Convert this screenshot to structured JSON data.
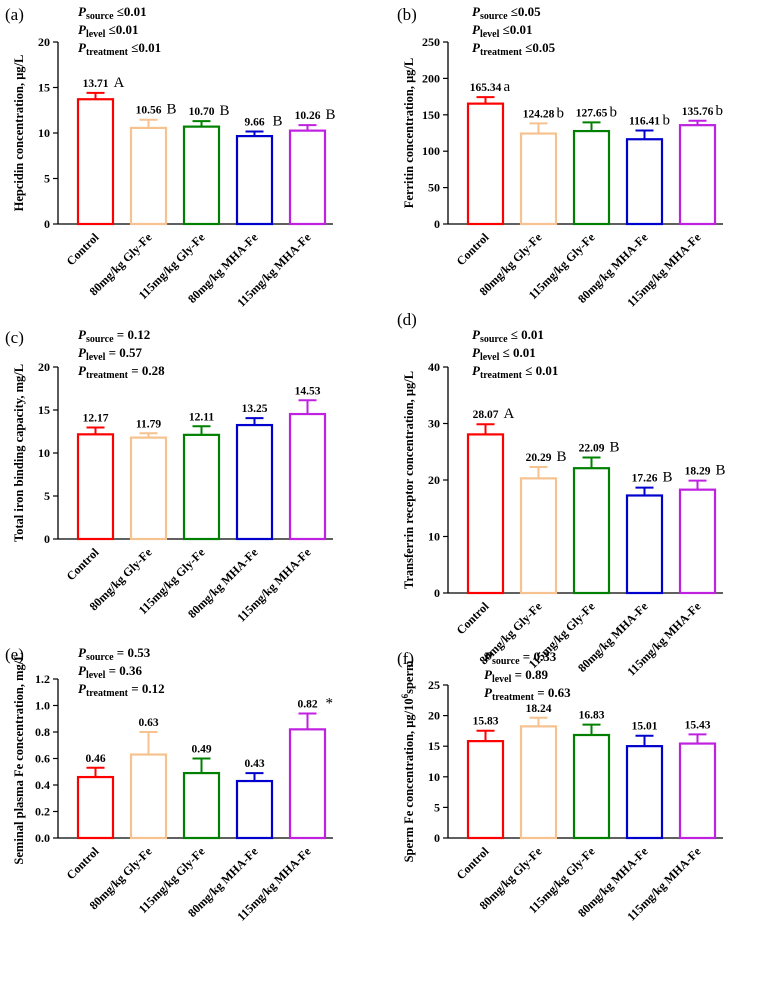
{
  "colors": {
    "Control": "#ff0000",
    "80mg/kg Gly-Fe": "#f6c28f",
    "115mg/kg Gly-Fe": "#008000",
    "80mg/kg MHA-Fe": "#0000cc",
    "115mg/kg MHA-Fe": "#c020e0"
  },
  "chart_data": [
    {
      "panel": "(a)",
      "type": "bar",
      "categories": [
        "Control",
        "80mg/kg Gly-Fe",
        "115mg/kg Gly-Fe",
        "80mg/kg MHA-Fe",
        "115mg/kg MHA-Fe"
      ],
      "values": [
        13.71,
        10.56,
        10.7,
        9.66,
        10.26
      ],
      "value_labels": [
        "13.71",
        "10.56",
        "10.70",
        "9.66",
        "10.26"
      ],
      "errors": [
        0.7,
        0.9,
        0.6,
        0.5,
        0.6
      ],
      "letters": [
        "A",
        "B",
        "B",
        "B",
        "B"
      ],
      "ylabel": "Hepcidin concentration, μg/L",
      "ylim": [
        0,
        20
      ],
      "yticks": [
        0,
        5,
        10,
        15,
        20
      ],
      "stats": [
        {
          "p": "P",
          "sub": "source",
          "text": "≤0.01"
        },
        {
          "p": "P",
          "sub": "level",
          "text": "≤0.01"
        },
        {
          "p": "P",
          "sub": "treatment",
          "text": "≤0.01"
        }
      ]
    },
    {
      "panel": "(b)",
      "type": "bar",
      "categories": [
        "Control",
        "80mg/kg Gly-Fe",
        "115mg/kg Gly-Fe",
        "80mg/kg MHA-Fe",
        "115mg/kg MHA-Fe"
      ],
      "values": [
        165.34,
        124.28,
        127.65,
        116.41,
        135.76
      ],
      "value_labels": [
        "165.34",
        "124.28",
        "127.65",
        "116.41",
        "135.76"
      ],
      "errors": [
        9,
        14,
        12,
        12,
        6
      ],
      "letters": [
        "a",
        "b",
        "b",
        "b",
        "b"
      ],
      "ylabel": "Ferritin concentration, μg/L",
      "ylim": [
        0,
        250
      ],
      "yticks": [
        0,
        50,
        100,
        150,
        200,
        250
      ],
      "stats": [
        {
          "p": "P",
          "sub": "source",
          "text": "≤0.05"
        },
        {
          "p": "P",
          "sub": "level",
          "text": "≤0.01"
        },
        {
          "p": "P",
          "sub": "treatment",
          "text": "≤0.05"
        }
      ]
    },
    {
      "panel": "(c)",
      "type": "bar",
      "categories": [
        "Control",
        "80mg/kg Gly-Fe",
        "115mg/kg Gly-Fe",
        "80mg/kg MHA-Fe",
        "115mg/kg MHA-Fe"
      ],
      "values": [
        12.17,
        11.79,
        12.11,
        13.25,
        14.53
      ],
      "value_labels": [
        "12.17",
        "11.79",
        "12.11",
        "13.25",
        "14.53"
      ],
      "errors": [
        0.8,
        0.5,
        1.0,
        0.8,
        1.6
      ],
      "letters": [
        "",
        "",
        "",
        "",
        ""
      ],
      "ylabel": "Total iron binding capacity, mg/L",
      "ylim": [
        0,
        20
      ],
      "yticks": [
        0,
        5,
        10,
        15,
        20
      ],
      "stats": [
        {
          "p": "P",
          "sub": "source",
          "text": "= 0.12"
        },
        {
          "p": "P",
          "sub": "level",
          "text": "= 0.57"
        },
        {
          "p": "P",
          "sub": "treatment",
          "text": "= 0.28"
        }
      ]
    },
    {
      "panel": "(d)",
      "type": "bar",
      "categories": [
        "Control",
        "80mg/kg Gly-Fe",
        "115mg/kg Gly-Fe",
        "80mg/kg MHA-Fe",
        "115mg/kg MHA-Fe"
      ],
      "values": [
        28.07,
        20.29,
        22.09,
        17.26,
        18.29
      ],
      "value_labels": [
        "28.07",
        "20.29",
        "22.09",
        "17.26",
        "18.29"
      ],
      "errors": [
        1.8,
        2.0,
        1.9,
        1.4,
        1.6
      ],
      "letters": [
        "A",
        "B",
        "B",
        "B",
        "B"
      ],
      "ylabel": "Transferrin receptor concentration, μg/L",
      "ylim": [
        0,
        40
      ],
      "yticks": [
        0,
        10,
        20,
        30,
        40
      ],
      "stats": [
        {
          "p": "P",
          "sub": "source",
          "text": "≤ 0.01"
        },
        {
          "p": "P",
          "sub": "level",
          "text": "≤ 0.01"
        },
        {
          "p": "P",
          "sub": "treatment",
          "text": "≤ 0.01"
        }
      ]
    },
    {
      "panel": "(e)",
      "type": "bar",
      "categories": [
        "Control",
        "80mg/kg Gly-Fe",
        "115mg/kg Gly-Fe",
        "80mg/kg MHA-Fe",
        "115mg/kg MHA-Fe"
      ],
      "values": [
        0.46,
        0.63,
        0.49,
        0.43,
        0.82
      ],
      "value_labels": [
        "0.46",
        "0.63",
        "0.49",
        "0.43",
        "0.82"
      ],
      "errors": [
        0.07,
        0.17,
        0.11,
        0.06,
        0.12
      ],
      "letters": [
        "",
        "",
        "",
        "",
        "*"
      ],
      "ylabel": "Seminal plasma Fe concentration, mg/L",
      "ylim": [
        0,
        1.2
      ],
      "yticks": [
        0.0,
        0.2,
        0.4,
        0.6,
        0.8,
        1.0,
        1.2
      ],
      "tick_format": "0.0",
      "stats": [
        {
          "p": "P",
          "sub": "source",
          "text": "= 0.53"
        },
        {
          "p": "P",
          "sub": "level",
          "text": "= 0.36"
        },
        {
          "p": "P",
          "sub": "treatment",
          "text": "= 0.12"
        }
      ]
    },
    {
      "panel": "(f)",
      "type": "bar",
      "categories": [
        "Control",
        "80mg/kg Gly-Fe",
        "115mg/kg Gly-Fe",
        "80mg/kg MHA-Fe",
        "115mg/kg MHA-Fe"
      ],
      "values": [
        15.83,
        18.24,
        16.83,
        15.01,
        15.43
      ],
      "value_labels": [
        "15.83",
        "18.24",
        "16.83",
        "15.01",
        "15.43"
      ],
      "errors": [
        1.7,
        1.4,
        1.7,
        1.7,
        1.5
      ],
      "letters": [
        "",
        "",
        "",
        "",
        ""
      ],
      "ylabel": "Sperm Fe concentration, μg/10",
      "ylabel_sup": "6",
      "ylabel_tail": "sperm",
      "ylim": [
        0,
        25
      ],
      "yticks": [
        0,
        5,
        10,
        15,
        20,
        25
      ],
      "stats": [
        {
          "p": "P",
          "sub": "source",
          "text": "= 0.33"
        },
        {
          "p": "P",
          "sub": "level",
          "text": "= 0.89"
        },
        {
          "p": "P",
          "sub": "treatment",
          "text": "= 0.63"
        }
      ]
    }
  ]
}
